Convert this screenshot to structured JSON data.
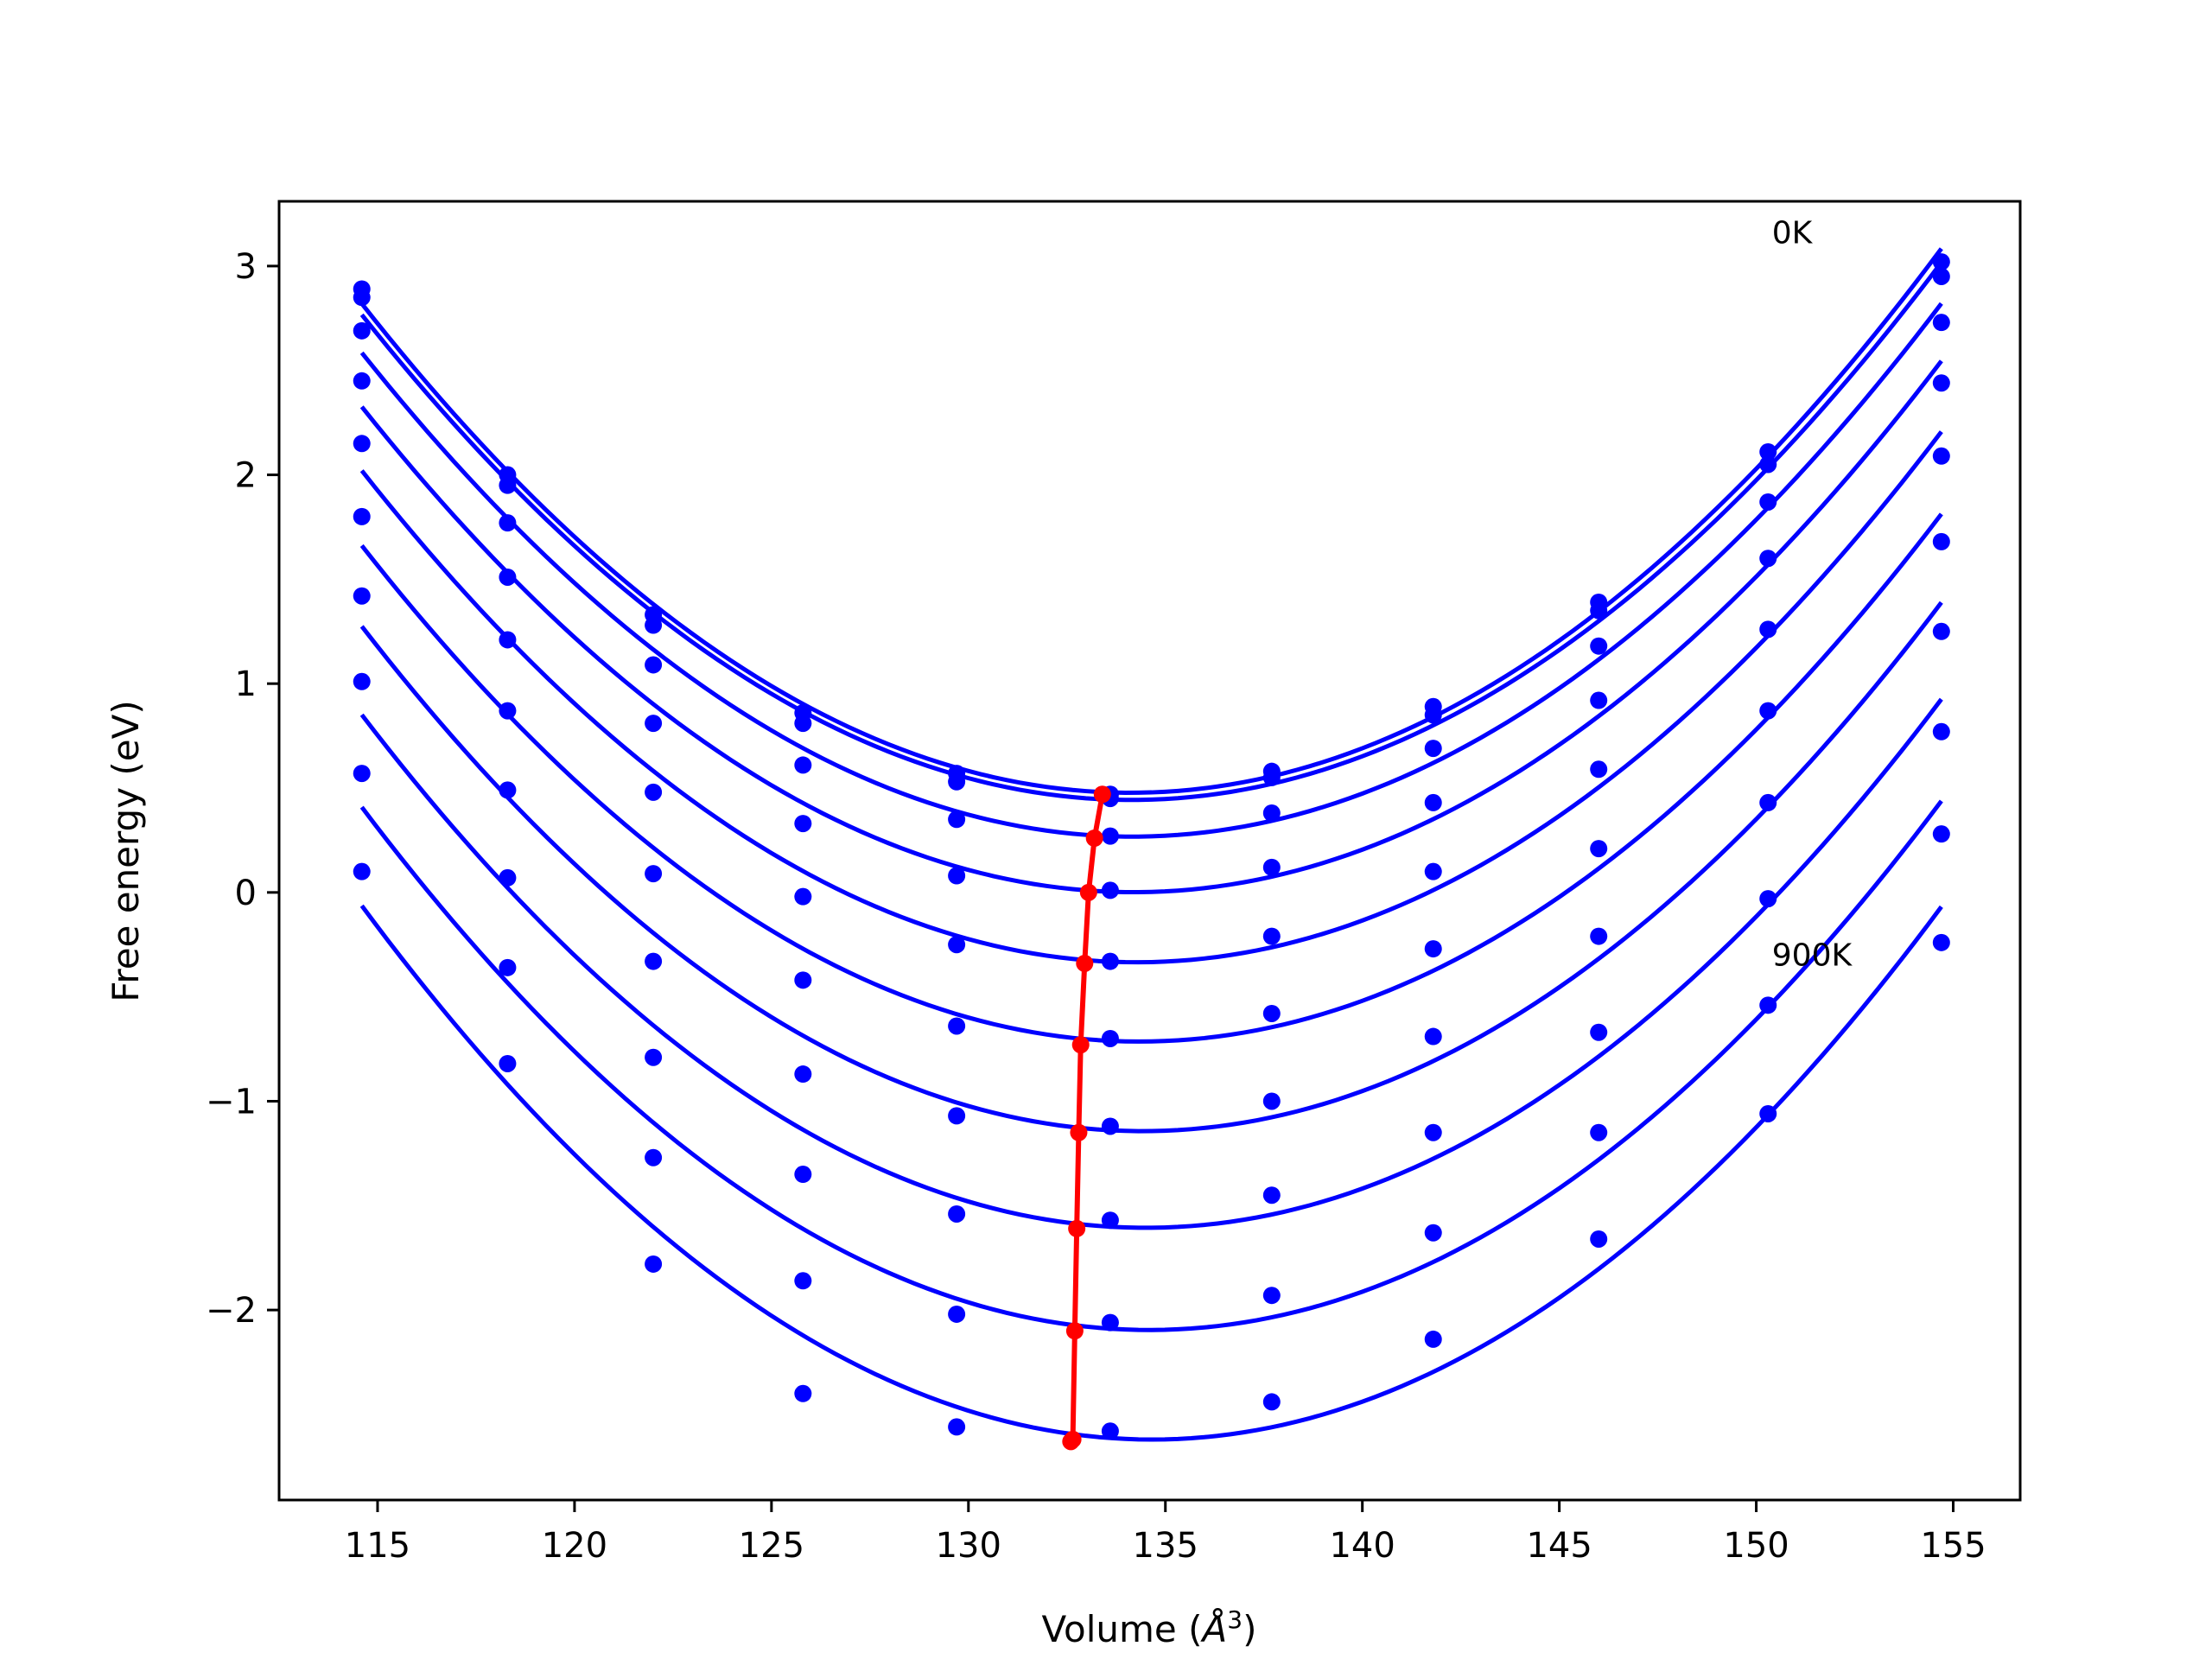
{
  "chart_data": {
    "type": "line",
    "title": "",
    "xlabel": "Volume (",
    "xlabel_unit": "Å",
    "xlabel_exp": "3",
    "xlabel_close": ")",
    "ylabel": "Free energy (eV)",
    "xlim": [
      112.5,
      156.7
    ],
    "ylim": [
      -2.91,
      3.31
    ],
    "xticks": [
      115,
      120,
      125,
      130,
      135,
      140,
      145,
      150,
      155
    ],
    "xtick_labels": [
      "115",
      "120",
      "125",
      "130",
      "135",
      "140",
      "145",
      "150",
      "155"
    ],
    "yticks": [
      -2,
      -1,
      0,
      1,
      2,
      3
    ],
    "ytick_labels": [
      "−2",
      "−1",
      "0",
      "1",
      "2",
      "3"
    ],
    "grid": false,
    "legend": "none",
    "colors": {
      "series": "#0000ff",
      "minimum_path": "#ff0000"
    },
    "x": [
      114.6,
      118.3,
      122.0,
      125.8,
      129.7,
      133.6,
      137.7,
      141.8,
      146.0,
      150.3,
      154.7
    ],
    "series": [
      {
        "values": [
          2.89,
          2.0,
          1.33,
          0.86,
          0.57,
          0.47,
          0.58,
          0.89,
          1.39,
          2.11,
          3.02
        ]
      },
      {
        "values": [
          2.85,
          1.95,
          1.28,
          0.81,
          0.53,
          0.45,
          0.55,
          0.85,
          1.35,
          2.05,
          2.95
        ]
      },
      {
        "values": [
          2.69,
          1.77,
          1.09,
          0.61,
          0.35,
          0.27,
          0.38,
          0.69,
          1.18,
          1.87,
          2.73
        ]
      },
      {
        "values": [
          2.45,
          1.51,
          0.81,
          0.33,
          0.08,
          0.01,
          0.12,
          0.43,
          0.92,
          1.6,
          2.44
        ]
      },
      {
        "values": [
          2.15,
          1.21,
          0.48,
          -0.02,
          -0.25,
          -0.33,
          -0.21,
          0.1,
          0.59,
          1.26,
          2.09
        ]
      },
      {
        "values": [
          1.8,
          0.87,
          0.09,
          -0.42,
          -0.64,
          -0.7,
          -0.58,
          -0.27,
          0.21,
          0.87,
          1.68
        ]
      },
      {
        "values": [
          1.42,
          0.49,
          -0.33,
          -0.87,
          -1.07,
          -1.12,
          -1.0,
          -0.69,
          -0.21,
          0.43,
          1.25
        ]
      },
      {
        "values": [
          1.01,
          0.07,
          -0.79,
          -1.35,
          -1.54,
          -1.57,
          -1.45,
          -1.15,
          -0.67,
          -0.03,
          0.77
        ]
      },
      {
        "values": [
          0.57,
          -0.36,
          -1.27,
          -1.86,
          -2.02,
          -2.06,
          -1.93,
          -1.63,
          -1.15,
          -0.54,
          0.28
        ]
      },
      {
        "values": [
          0.1,
          -0.82,
          -1.78,
          -2.4,
          -2.56,
          -2.58,
          -2.44,
          -2.14,
          -1.66,
          -1.06,
          -0.24
        ]
      }
    ],
    "minimum_path": {
      "x": [
        133.4,
        133.2,
        133.05,
        132.95,
        132.85,
        132.8,
        132.75,
        132.7,
        132.65,
        132.6
      ],
      "y": [
        0.47,
        0.26,
        0.0,
        -0.34,
        -0.73,
        -1.15,
        -1.61,
        -2.1,
        -2.62,
        -2.63
      ]
    },
    "annotations": [
      {
        "text": "0K",
        "x": 150.4,
        "y": 3.11
      },
      {
        "text": "900K",
        "x": 150.4,
        "y": -0.35
      }
    ]
  }
}
